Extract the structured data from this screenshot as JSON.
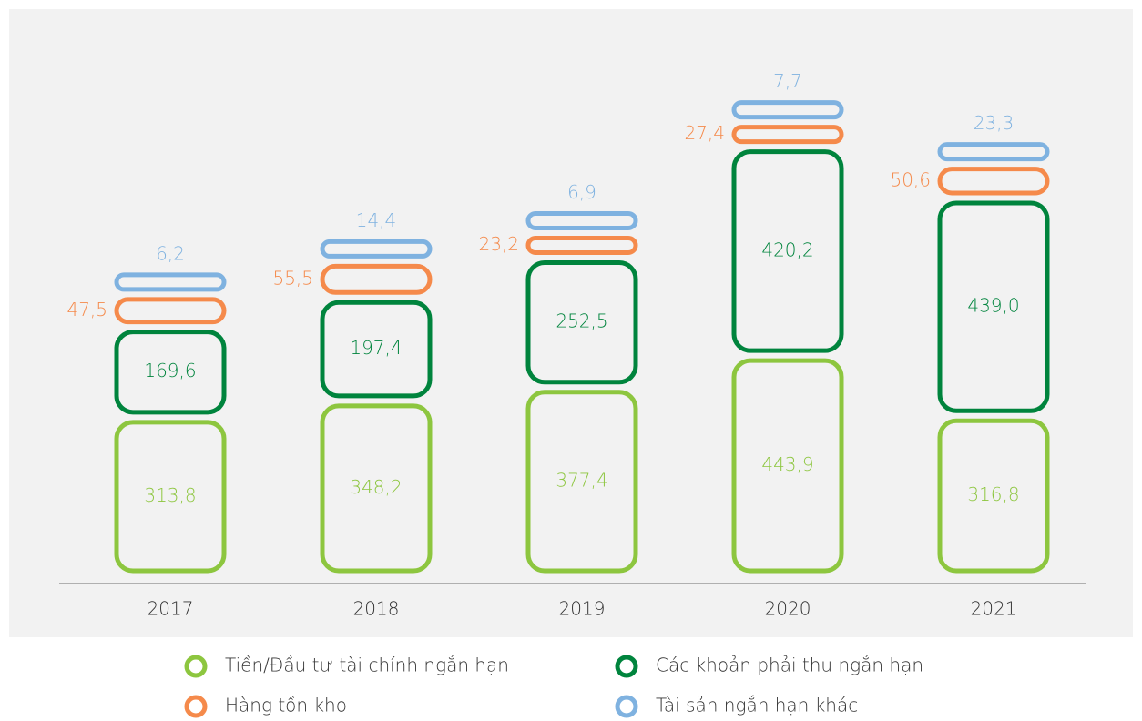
{
  "chart_data": {
    "type": "stacked-bar",
    "categories": [
      "2017",
      "2018",
      "2019",
      "2020",
      "2021"
    ],
    "series": [
      {
        "name": "Tiền/Đầu tư tài chính ngắn hạn",
        "color": "#8dc63f",
        "values": [
          313.8,
          348.2,
          377.4,
          443.9,
          316.8
        ],
        "value_labels": [
          "313,8",
          "348,2",
          "377,4",
          "443,9",
          "316,8"
        ]
      },
      {
        "name": "Các khoản phải thu ngắn hạn",
        "color": "#00843d",
        "values": [
          169.6,
          197.4,
          252.5,
          420.2,
          439.0
        ],
        "value_labels": [
          "169,6",
          "197,4",
          "252,5",
          "420,2",
          "439,0"
        ]
      },
      {
        "name": "Hàng tồn kho",
        "color": "#f58a4b",
        "values": [
          47.5,
          55.5,
          23.2,
          27.4,
          50.6
        ],
        "value_labels": [
          "47,5",
          "55,5",
          "23,2",
          "27,4",
          "50,6"
        ]
      },
      {
        "name": "Tài sản ngắn hạn khác",
        "color": "#7fb2e0",
        "values": [
          6.2,
          14.4,
          6.9,
          7.7,
          23.3
        ],
        "value_labels": [
          "6,2",
          "14,4",
          "6,9",
          "7,7",
          "23,3"
        ]
      }
    ]
  }
}
